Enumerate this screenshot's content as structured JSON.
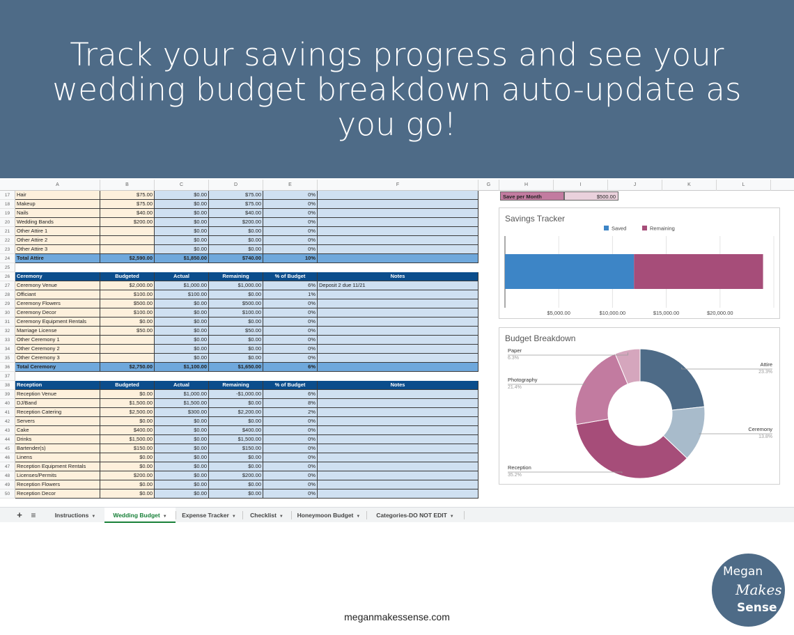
{
  "banner": {
    "title": "Track your savings progress and see your wedding budget breakdown auto-update as you go!"
  },
  "sheet": {
    "column_letters": [
      "A",
      "B",
      "C",
      "D",
      "E",
      "F",
      "G",
      "H",
      "I",
      "J",
      "K",
      "L"
    ],
    "rows": [
      {
        "n": "17",
        "cells": [
          "Hair",
          "$75.00",
          "$0.00",
          "$75.00",
          "0%",
          ""
        ]
      },
      {
        "n": "18",
        "cells": [
          "Makeup",
          "$75.00",
          "$0.00",
          "$75.00",
          "0%",
          ""
        ]
      },
      {
        "n": "19",
        "cells": [
          "Nails",
          "$40.00",
          "$0.00",
          "$40.00",
          "0%",
          ""
        ]
      },
      {
        "n": "20",
        "cells": [
          "Wedding Bands",
          "$200.00",
          "$0.00",
          "$200.00",
          "0%",
          ""
        ]
      },
      {
        "n": "21",
        "cells": [
          "Other Attire 1",
          "",
          "$0.00",
          "$0.00",
          "0%",
          ""
        ]
      },
      {
        "n": "22",
        "cells": [
          "Other Attire 2",
          "",
          "$0.00",
          "$0.00",
          "0%",
          ""
        ]
      },
      {
        "n": "23",
        "cells": [
          "Other Attire 3",
          "",
          "$0.00",
          "$0.00",
          "0%",
          ""
        ]
      },
      {
        "n": "24",
        "style": "total",
        "cells": [
          "Total Attire",
          "$2,590.00",
          "$1,850.00",
          "$740.00",
          "10%",
          ""
        ]
      },
      {
        "n": "25",
        "style": "blank",
        "cells": [
          "",
          "",
          "",
          "",
          "",
          ""
        ]
      },
      {
        "n": "26",
        "style": "header",
        "cells": [
          "Ceremony",
          "Budgeted",
          "Actual",
          "Remaining",
          "% of Budget",
          "Notes"
        ]
      },
      {
        "n": "27",
        "cells": [
          "Ceremony Venue",
          "$2,000.00",
          "$1,000.00",
          "$1,000.00",
          "6%",
          "Deposit 2 due 11/21"
        ]
      },
      {
        "n": "28",
        "cells": [
          "Officiant",
          "$100.00",
          "$100.00",
          "$0.00",
          "1%",
          ""
        ]
      },
      {
        "n": "29",
        "cells": [
          "Ceremony Flowers",
          "$500.00",
          "$0.00",
          "$500.00",
          "0%",
          ""
        ]
      },
      {
        "n": "30",
        "cells": [
          "Ceremony Decor",
          "$100.00",
          "$0.00",
          "$100.00",
          "0%",
          ""
        ]
      },
      {
        "n": "31",
        "cells": [
          "Ceremony Equipment Rentals",
          "$0.00",
          "$0.00",
          "$0.00",
          "0%",
          ""
        ]
      },
      {
        "n": "32",
        "cells": [
          "Marriage License",
          "$50.00",
          "$0.00",
          "$50.00",
          "0%",
          ""
        ]
      },
      {
        "n": "33",
        "cells": [
          "Other Ceremony 1",
          "",
          "$0.00",
          "$0.00",
          "0%",
          ""
        ]
      },
      {
        "n": "34",
        "cells": [
          "Other Ceremony 2",
          "",
          "$0.00",
          "$0.00",
          "0%",
          ""
        ]
      },
      {
        "n": "35",
        "cells": [
          "Other Ceremony 3",
          "",
          "$0.00",
          "$0.00",
          "0%",
          ""
        ]
      },
      {
        "n": "36",
        "style": "total",
        "cells": [
          "Total Ceremony",
          "$2,750.00",
          "$1,100.00",
          "$1,650.00",
          "6%",
          ""
        ]
      },
      {
        "n": "37",
        "style": "blank",
        "cells": [
          "",
          "",
          "",
          "",
          "",
          ""
        ]
      },
      {
        "n": "38",
        "style": "header",
        "cells": [
          "Reception",
          "Budgeted",
          "Actual",
          "Remaining",
          "% of Budget",
          "Notes"
        ]
      },
      {
        "n": "39",
        "cells": [
          "Reception Venue",
          "$0.00",
          "$1,000.00",
          "-$1,000.00",
          "6%",
          ""
        ]
      },
      {
        "n": "40",
        "cells": [
          "DJ/Band",
          "$1,500.00",
          "$1,500.00",
          "$0.00",
          "8%",
          ""
        ]
      },
      {
        "n": "41",
        "cells": [
          "Reception Catering",
          "$2,500.00",
          "$300.00",
          "$2,200.00",
          "2%",
          ""
        ]
      },
      {
        "n": "42",
        "cells": [
          "Servers",
          "$0.00",
          "$0.00",
          "$0.00",
          "0%",
          ""
        ]
      },
      {
        "n": "43",
        "cells": [
          "Cake",
          "$400.00",
          "$0.00",
          "$400.00",
          "0%",
          ""
        ]
      },
      {
        "n": "44",
        "cells": [
          "Drinks",
          "$1,500.00",
          "$0.00",
          "$1,500.00",
          "0%",
          ""
        ]
      },
      {
        "n": "45",
        "cells": [
          "Bartender(s)",
          "$150.00",
          "$0.00",
          "$150.00",
          "0%",
          ""
        ]
      },
      {
        "n": "46",
        "cells": [
          "Linens",
          "$0.00",
          "$0.00",
          "$0.00",
          "0%",
          ""
        ]
      },
      {
        "n": "47",
        "cells": [
          "Reception Equipment Rentals",
          "$0.00",
          "$0.00",
          "$0.00",
          "0%",
          ""
        ]
      },
      {
        "n": "48",
        "cells": [
          "Licenses/Permits",
          "$200.00",
          "$0.00",
          "$200.00",
          "0%",
          ""
        ]
      },
      {
        "n": "49",
        "cells": [
          "Reception Flowers",
          "$0.00",
          "$0.00",
          "$0.00",
          "0%",
          ""
        ]
      },
      {
        "n": "50",
        "cells": [
          "Reception Decor",
          "$0.00",
          "$0.00",
          "$0.00",
          "0%",
          ""
        ]
      }
    ]
  },
  "save_per_month": {
    "label": "Save per Month",
    "value": "$500.00"
  },
  "savings_chart": {
    "title": "Savings Tracker",
    "legend": [
      "Saved",
      "Remaining"
    ],
    "colors": {
      "saved": "#3d85c6",
      "remaining": "#a64d79"
    },
    "axis_ticks": [
      "$5,000.00",
      "$10,000.00",
      "$15,000.00",
      "$20,000.00"
    ]
  },
  "budget_chart": {
    "title": "Budget Breakdown",
    "slices": [
      {
        "name": "Attire",
        "pct": "23.3%",
        "color": "#4e6b87"
      },
      {
        "name": "Ceremony",
        "pct": "13.8%",
        "color": "#a8bbcb"
      },
      {
        "name": "Reception",
        "pct": "35.2%",
        "color": "#a64d79"
      },
      {
        "name": "Photography",
        "pct": "21.4%",
        "color": "#c27ba0"
      },
      {
        "name": "Paper",
        "pct": "6.3%",
        "color": "#d5a6bd"
      }
    ]
  },
  "chart_data": [
    {
      "type": "bar",
      "title": "Savings Tracker",
      "orientation": "horizontal-stacked",
      "series": [
        {
          "name": "Saved",
          "values": [
            12000
          ]
        },
        {
          "name": "Remaining",
          "values": [
            12000
          ]
        }
      ],
      "xlim": [
        0,
        25000
      ],
      "x_ticks": [
        "$5,000.00",
        "$10,000.00",
        "$15,000.00",
        "$20,000.00"
      ],
      "legend": "top",
      "grid": true
    },
    {
      "type": "pie",
      "title": "Budget Breakdown",
      "donut": true,
      "categories": [
        "Attire",
        "Ceremony",
        "Reception",
        "Photography",
        "Paper"
      ],
      "values": [
        23.3,
        13.8,
        35.2,
        21.4,
        6.3
      ]
    }
  ],
  "tabs": {
    "add_icon": "+",
    "list_icon": "≡",
    "items": [
      {
        "label": "Instructions"
      },
      {
        "label": "Wedding Budget"
      },
      {
        "label": "Expense Tracker"
      },
      {
        "label": "Checklist"
      },
      {
        "label": "Honeymoon Budget"
      },
      {
        "label": "Categories-DO NOT EDIT"
      }
    ],
    "active_index": 1
  },
  "footer": {
    "url": "meganmakessense.com"
  },
  "logo": {
    "line1": "Megan",
    "line2": "Makes",
    "line3": "Sense"
  }
}
